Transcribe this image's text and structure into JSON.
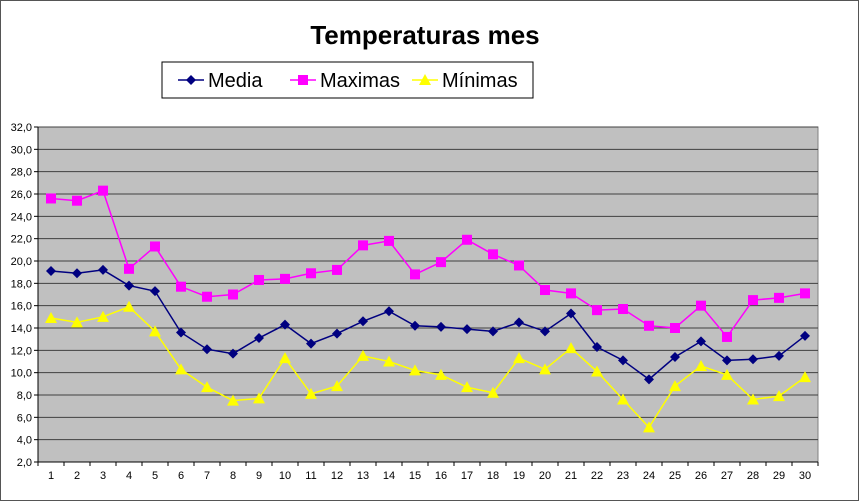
{
  "chart_data": {
    "type": "line",
    "title": "Temperaturas mes",
    "xlabel": "",
    "ylabel": "",
    "ylim": [
      2,
      32
    ],
    "ytick_step": 2,
    "ytick_labels": [
      "2,0",
      "4,0",
      "6,0",
      "8,0",
      "10,0",
      "12,0",
      "14,0",
      "16,0",
      "18,0",
      "20,0",
      "22,0",
      "24,0",
      "26,0",
      "28,0",
      "30,0",
      "32,0"
    ],
    "categories": [
      "1",
      "2",
      "3",
      "4",
      "5",
      "6",
      "7",
      "8",
      "9",
      "10",
      "11",
      "12",
      "13",
      "14",
      "15",
      "16",
      "17",
      "18",
      "19",
      "20",
      "21",
      "22",
      "23",
      "24",
      "25",
      "26",
      "27",
      "28",
      "29",
      "30"
    ],
    "grid": true,
    "legend_position": "top-center",
    "plot_background": "#C0C0C0",
    "series": [
      {
        "name": "Media",
        "color": "#000080",
        "marker": "diamond",
        "values": [
          19.1,
          18.9,
          19.2,
          17.8,
          17.3,
          13.6,
          12.1,
          11.7,
          13.1,
          14.3,
          12.6,
          13.5,
          14.6,
          15.5,
          14.2,
          14.1,
          13.9,
          13.7,
          14.5,
          13.7,
          15.3,
          12.3,
          11.1,
          9.4,
          11.4,
          12.8,
          11.1,
          11.2,
          11.5,
          13.3
        ]
      },
      {
        "name": "Maximas",
        "color": "#FF00FF",
        "marker": "square",
        "values": [
          25.6,
          25.4,
          26.3,
          19.3,
          21.3,
          17.7,
          16.8,
          17.0,
          18.3,
          18.4,
          18.9,
          19.2,
          21.4,
          21.8,
          18.8,
          19.9,
          21.9,
          20.6,
          19.6,
          17.4,
          17.1,
          15.6,
          15.7,
          14.2,
          14.0,
          16.0,
          13.2,
          16.5,
          16.7,
          17.1
        ]
      },
      {
        "name": "Mínimas",
        "color": "#FFFF00",
        "marker": "triangle",
        "values": [
          14.9,
          14.5,
          15.0,
          15.9,
          13.7,
          10.3,
          8.7,
          7.5,
          7.7,
          11.3,
          8.1,
          8.8,
          11.5,
          11.0,
          10.2,
          9.8,
          8.7,
          8.2,
          11.3,
          10.3,
          12.2,
          10.1,
          7.6,
          5.1,
          8.8,
          10.6,
          9.8,
          7.6,
          7.9,
          9.6
        ]
      }
    ]
  }
}
